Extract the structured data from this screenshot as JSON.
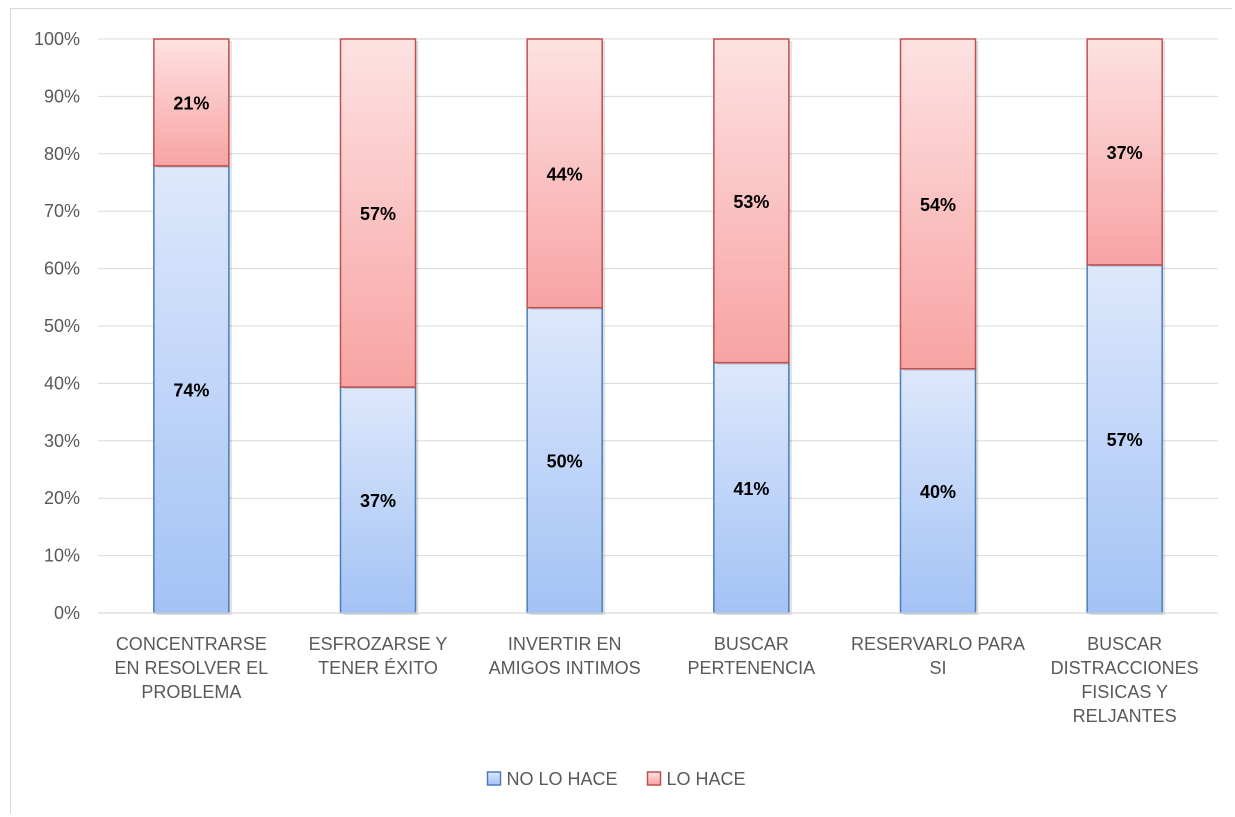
{
  "chart_data": {
    "type": "bar",
    "stacked": "percent",
    "categories": [
      [
        "CONCENTRARSE",
        "EN RESOLVER EL",
        "PROBLEMA"
      ],
      [
        "ESFROZARSE Y",
        "TENER ÉXITO"
      ],
      [
        "INVERTIR EN",
        "AMIGOS INTIMOS"
      ],
      [
        "BUSCAR",
        "PERTENENCIA"
      ],
      [
        "RESERVARLO PARA",
        "SI"
      ],
      [
        "BUSCAR",
        "DISTRACCIONES",
        "FISICAS Y",
        "RELJANTES"
      ]
    ],
    "series": [
      {
        "name": "NO LO HACE",
        "values": [
          74,
          37,
          50,
          41,
          40,
          57
        ],
        "labels": [
          "74%",
          "37%",
          "50%",
          "41%",
          "40%",
          "57%"
        ],
        "fill_top": "#dde8fb",
        "fill_bottom": "#a3c2f5",
        "stroke": "#4a7ebb"
      },
      {
        "name": "LO HACE",
        "values": [
          21,
          57,
          44,
          53,
          54,
          37
        ],
        "labels": [
          "21%",
          "57%",
          "44%",
          "53%",
          "54%",
          "37%"
        ],
        "fill_top": "#fde2e2",
        "fill_bottom": "#f8a3a3",
        "stroke": "#c0504d"
      }
    ],
    "yticks": [
      "0%",
      "10%",
      "20%",
      "30%",
      "40%",
      "50%",
      "60%",
      "70%",
      "80%",
      "90%",
      "100%"
    ],
    "ylim": [
      0,
      100
    ],
    "grid": true,
    "legend": "bottom",
    "gridColor": "#d9d9d9"
  }
}
